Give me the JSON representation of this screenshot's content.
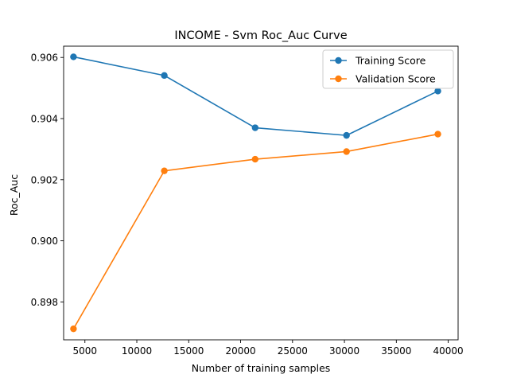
{
  "chart_data": {
    "type": "line",
    "title": "INCOME - Svm Roc_Auc Curve",
    "xlabel": "Number of training samples",
    "ylabel": "Roc_Auc",
    "xlim": [
      2950,
      40950
    ],
    "ylim": [
      0.89676,
      0.90637
    ],
    "xticks": [
      5000,
      10000,
      15000,
      20000,
      25000,
      30000,
      35000,
      40000
    ],
    "xtick_labels": [
      "5000",
      "10000",
      "15000",
      "20000",
      "25000",
      "30000",
      "35000",
      "40000"
    ],
    "yticks": [
      0.898,
      0.9,
      0.902,
      0.904,
      0.906
    ],
    "ytick_labels": [
      "0.898",
      "0.900",
      "0.902",
      "0.904",
      "0.906"
    ],
    "grid": false,
    "legend_position": "top-right",
    "x": [
      3900,
      12650,
      21400,
      30200,
      39000
    ],
    "series": [
      {
        "name": "Training Score",
        "color": "#1f77b4",
        "values": [
          0.90602,
          0.90541,
          0.9037,
          0.90345,
          0.9049
        ]
      },
      {
        "name": "Validation Score",
        "color": "#ff7f0e",
        "values": [
          0.89712,
          0.90229,
          0.90267,
          0.90292,
          0.90349
        ]
      }
    ]
  }
}
